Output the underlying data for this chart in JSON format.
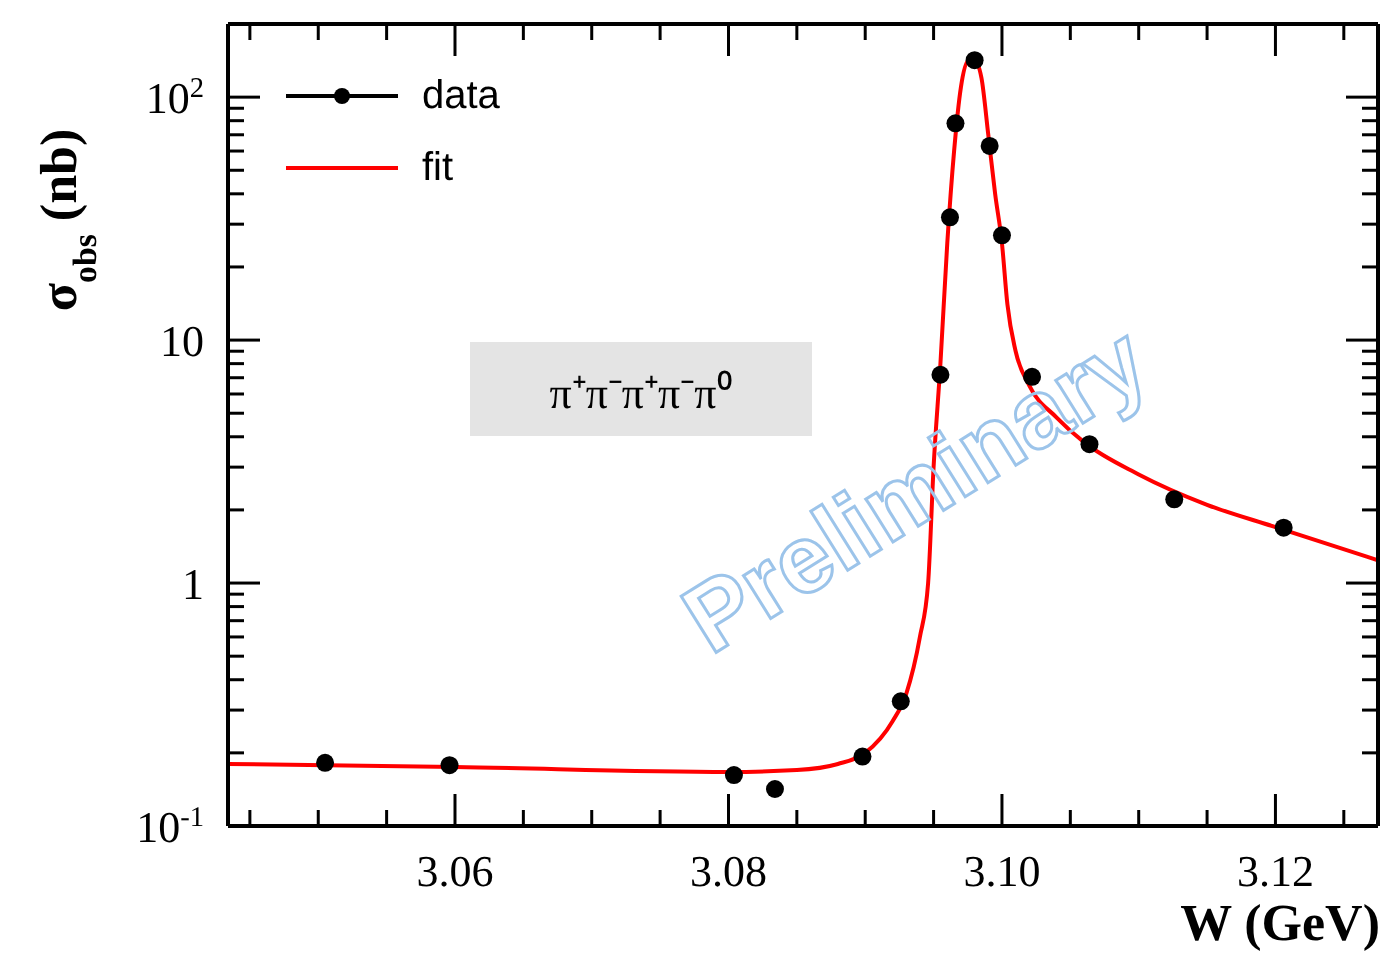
{
  "chart_data": {
    "type": "scatter",
    "xlabel": "W (GeV)",
    "ylabel": "σ$_{obs}$ (nb)",
    "log": "y",
    "legend": "top left",
    "line_style": "solid",
    "xlim": [
      3.0434,
      3.1275
    ],
    "xticks": [
      {
        "value": 3.045,
        "label": null
      },
      {
        "value": 3.05,
        "label": null
      },
      {
        "value": 3.055,
        "label": null
      },
      3.06,
      {
        "value": 3.065,
        "label": null
      },
      {
        "value": 3.07,
        "label": null
      },
      {
        "value": 3.075,
        "label": null
      },
      3.08,
      {
        "value": 3.085,
        "label": null
      },
      {
        "value": 3.09,
        "label": null
      },
      {
        "value": 3.095,
        "label": null
      },
      {
        "value": 3.1,
        "label": "3.10"
      },
      {
        "value": 3.105,
        "label": null
      },
      {
        "value": 3.11,
        "label": null
      },
      {
        "value": 3.115,
        "label": null
      },
      3.12,
      {
        "value": 3.125,
        "label": null
      }
    ],
    "ylim": [
      0.1,
      200
    ],
    "yticks": [
      {
        "value": 0.1,
        "label": "10$^{-1}$"
      },
      {
        "value": 0.2,
        "label": null
      },
      {
        "value": 0.3,
        "label": null
      },
      {
        "value": 0.4,
        "label": null
      },
      {
        "value": 0.5,
        "label": null
      },
      {
        "value": 0.6,
        "label": null
      },
      {
        "value": 0.7,
        "label": null
      },
      {
        "value": 0.8,
        "label": null
      },
      {
        "value": 0.9,
        "label": null
      },
      1,
      {
        "value": 2,
        "label": null
      },
      {
        "value": 3,
        "label": null
      },
      {
        "value": 4,
        "label": null
      },
      {
        "value": 5,
        "label": null
      },
      {
        "value": 6,
        "label": null
      },
      {
        "value": 7,
        "label": null
      },
      {
        "value": 8,
        "label": null
      },
      {
        "value": 9,
        "label": null
      },
      10,
      {
        "value": 20,
        "label": null
      },
      {
        "value": 30,
        "label": null
      },
      {
        "value": 40,
        "label": null
      },
      {
        "value": 50,
        "label": null
      },
      {
        "value": 60,
        "label": null
      },
      {
        "value": 70,
        "label": null
      },
      {
        "value": 80,
        "label": null
      },
      {
        "value": 90,
        "label": null
      },
      {
        "value": 100,
        "label": "10$^{2}$"
      },
      {
        "value": 200,
        "label": null
      }
    ],
    "series": [
      {
        "name": "data",
        "marker": "circle",
        "color": "#000000",
        "x": [
          3.0505,
          3.0596,
          3.0804,
          3.0834,
          3.0898,
          3.0926,
          3.0955,
          3.0962,
          3.0966,
          3.098,
          3.0991,
          3.1,
          3.1022,
          3.1064,
          3.1126,
          3.1206
        ],
        "values": [
          0.182,
          0.178,
          0.162,
          0.142,
          0.193,
          0.326,
          7.2,
          32,
          78,
          142,
          63,
          27,
          7.06,
          3.73,
          2.21,
          1.69
        ]
      },
      {
        "name": "fit",
        "type": "line",
        "color": "#ff0000",
        "x": [
          3.0434,
          3.06,
          3.08,
          3.085,
          3.088,
          3.09,
          3.092,
          3.093,
          3.094,
          3.0946,
          3.095,
          3.0955,
          3.096,
          3.0965,
          3.097,
          3.0975,
          3.098,
          3.0985,
          3.099,
          3.0995,
          3.1,
          3.1004,
          3.101,
          3.102,
          3.104,
          3.106,
          3.11,
          3.115,
          3.12,
          3.1275
        ],
        "values": [
          0.18,
          0.175,
          0.167,
          0.17,
          0.18,
          0.2,
          0.27,
          0.35,
          0.6,
          1.0,
          3,
          8,
          25,
          60,
          110,
          140,
          142,
          120,
          70,
          40,
          25,
          14,
          9,
          6.5,
          4.8,
          3.8,
          2.8,
          2.1,
          1.7,
          1.24
        ]
      }
    ],
    "annotations": [
      "π⁺π⁻π⁺π⁻π⁰",
      "Preliminary"
    ]
  }
}
